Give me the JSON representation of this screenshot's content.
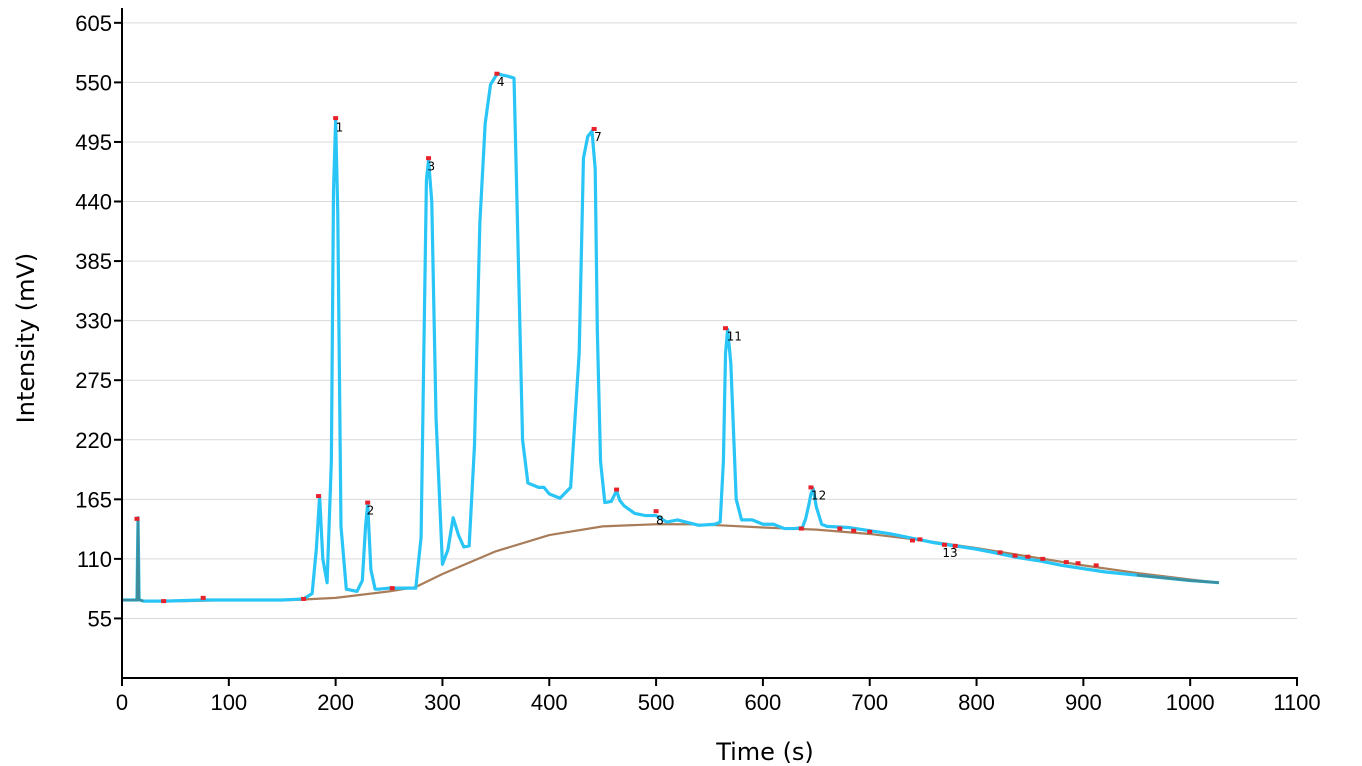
{
  "chart_data": {
    "type": "line",
    "title": "",
    "xlabel": "Time (s)",
    "ylabel": "Intensity (mV)",
    "xlim": [
      0,
      1100
    ],
    "ylim": [
      0,
      615
    ],
    "x_ticks": [
      "0",
      "100",
      "200",
      "300",
      "400",
      "500",
      "600",
      "700",
      "800",
      "900",
      "1000",
      "1100"
    ],
    "y_ticks": [
      "55",
      "110",
      "165",
      "220",
      "275",
      "330",
      "385",
      "440",
      "495",
      "550",
      "605"
    ],
    "grid": "horizontal",
    "colors": {
      "signal": "#29C5F6",
      "baseline": "#A97D5A",
      "overlap": "#3E8E9E",
      "markers": "#E8202A",
      "grid": "#D9D9D9",
      "axis": "#000000"
    },
    "series": [
      {
        "role": "signal",
        "x": [
          0,
          14,
          15,
          16,
          17,
          20,
          40,
          75,
          100,
          150,
          170,
          178,
          182,
          185,
          188,
          192,
          196,
          198,
          200,
          202,
          205,
          210,
          220,
          225,
          228,
          230,
          233,
          237,
          240,
          250,
          275,
          280,
          283,
          285,
          287,
          290,
          294,
          300,
          305,
          310,
          315,
          320,
          325,
          330,
          335,
          340,
          345,
          350,
          352,
          355,
          360,
          367,
          370,
          375,
          380,
          390,
          395,
          400,
          410,
          420,
          428,
          432,
          436,
          440,
          443,
          445,
          448,
          452,
          458,
          463,
          466,
          470,
          480,
          490,
          500,
          510,
          520,
          540,
          555,
          560,
          563,
          565,
          567,
          570,
          575,
          580,
          590,
          600,
          610,
          620,
          630,
          637,
          640,
          643,
          645,
          647,
          650,
          655,
          660,
          680,
          700,
          720,
          740,
          760,
          780,
          800,
          820,
          840,
          860,
          880,
          900,
          920,
          950,
          1000,
          1027
        ],
        "y": [
          72,
          72,
          148,
          72,
          72,
          71,
          71,
          72,
          72,
          72,
          73,
          78,
          120,
          168,
          110,
          88,
          200,
          450,
          515,
          430,
          140,
          82,
          80,
          90,
          140,
          161,
          100,
          82,
          82,
          83,
          83,
          130,
          330,
          460,
          478,
          440,
          240,
          105,
          118,
          148,
          132,
          121,
          122,
          215,
          420,
          512,
          548,
          556,
          558,
          557,
          556,
          554,
          430,
          220,
          180,
          176,
          176,
          170,
          166,
          176,
          300,
          480,
          500,
          505,
          470,
          320,
          200,
          162,
          163,
          173,
          164,
          159,
          152,
          150,
          150,
          144,
          146,
          141,
          142,
          144,
          200,
          300,
          322,
          290,
          165,
          146,
          146,
          142,
          142,
          138,
          138,
          139,
          147,
          160,
          170,
          175,
          158,
          142,
          140,
          139,
          136,
          133,
          129,
          125,
          122,
          119,
          115,
          111,
          108,
          104,
          101,
          98,
          95,
          90,
          88
        ]
      },
      {
        "role": "baseline",
        "x": [
          0,
          14,
          15,
          16,
          17,
          20,
          60,
          100,
          160,
          200,
          250,
          275,
          300,
          350,
          400,
          450,
          500,
          530,
          560,
          600,
          650,
          700,
          750,
          800,
          850,
          900,
          950,
          1000,
          1027
        ],
        "y": [
          72,
          72,
          148,
          72,
          72,
          71,
          71,
          72,
          72,
          74,
          80,
          84,
          96,
          117,
          132,
          140,
          142,
          142,
          141,
          139,
          137,
          133,
          127,
          120,
          112,
          104,
          97,
          91,
          88
        ]
      }
    ],
    "peak_labels": [
      {
        "text": "1",
        "x": 200,
        "y": 515
      },
      {
        "text": "2",
        "x": 229,
        "y": 161
      },
      {
        "text": "3",
        "x": 286,
        "y": 479
      },
      {
        "text": "4",
        "x": 351,
        "y": 557
      },
      {
        "text": "7",
        "x": 442,
        "y": 506
      },
      {
        "text": "8",
        "x": 500,
        "y": 152
      },
      {
        "text": "11",
        "x": 566,
        "y": 322
      },
      {
        "text": "12",
        "x": 645,
        "y": 175
      },
      {
        "text": "13",
        "x": 768,
        "y": 122
      }
    ],
    "markers": [
      {
        "x": 14,
        "y": 147
      },
      {
        "x": 39,
        "y": 71
      },
      {
        "x": 76,
        "y": 74
      },
      {
        "x": 170,
        "y": 73
      },
      {
        "x": 184,
        "y": 168
      },
      {
        "x": 200,
        "y": 517
      },
      {
        "x": 230,
        "y": 162
      },
      {
        "x": 253,
        "y": 83
      },
      {
        "x": 287,
        "y": 480
      },
      {
        "x": 351,
        "y": 558
      },
      {
        "x": 442,
        "y": 507
      },
      {
        "x": 463,
        "y": 174
      },
      {
        "x": 500,
        "y": 154
      },
      {
        "x": 565,
        "y": 323
      },
      {
        "x": 636,
        "y": 138
      },
      {
        "x": 645,
        "y": 176
      },
      {
        "x": 672,
        "y": 138
      },
      {
        "x": 685,
        "y": 136
      },
      {
        "x": 700,
        "y": 135
      },
      {
        "x": 740,
        "y": 127
      },
      {
        "x": 747,
        "y": 128
      },
      {
        "x": 770,
        "y": 123
      },
      {
        "x": 780,
        "y": 122
      },
      {
        "x": 822,
        "y": 116
      },
      {
        "x": 836,
        "y": 113
      },
      {
        "x": 848,
        "y": 112
      },
      {
        "x": 862,
        "y": 110
      },
      {
        "x": 884,
        "y": 107
      },
      {
        "x": 895,
        "y": 106
      },
      {
        "x": 912,
        "y": 104
      }
    ]
  }
}
